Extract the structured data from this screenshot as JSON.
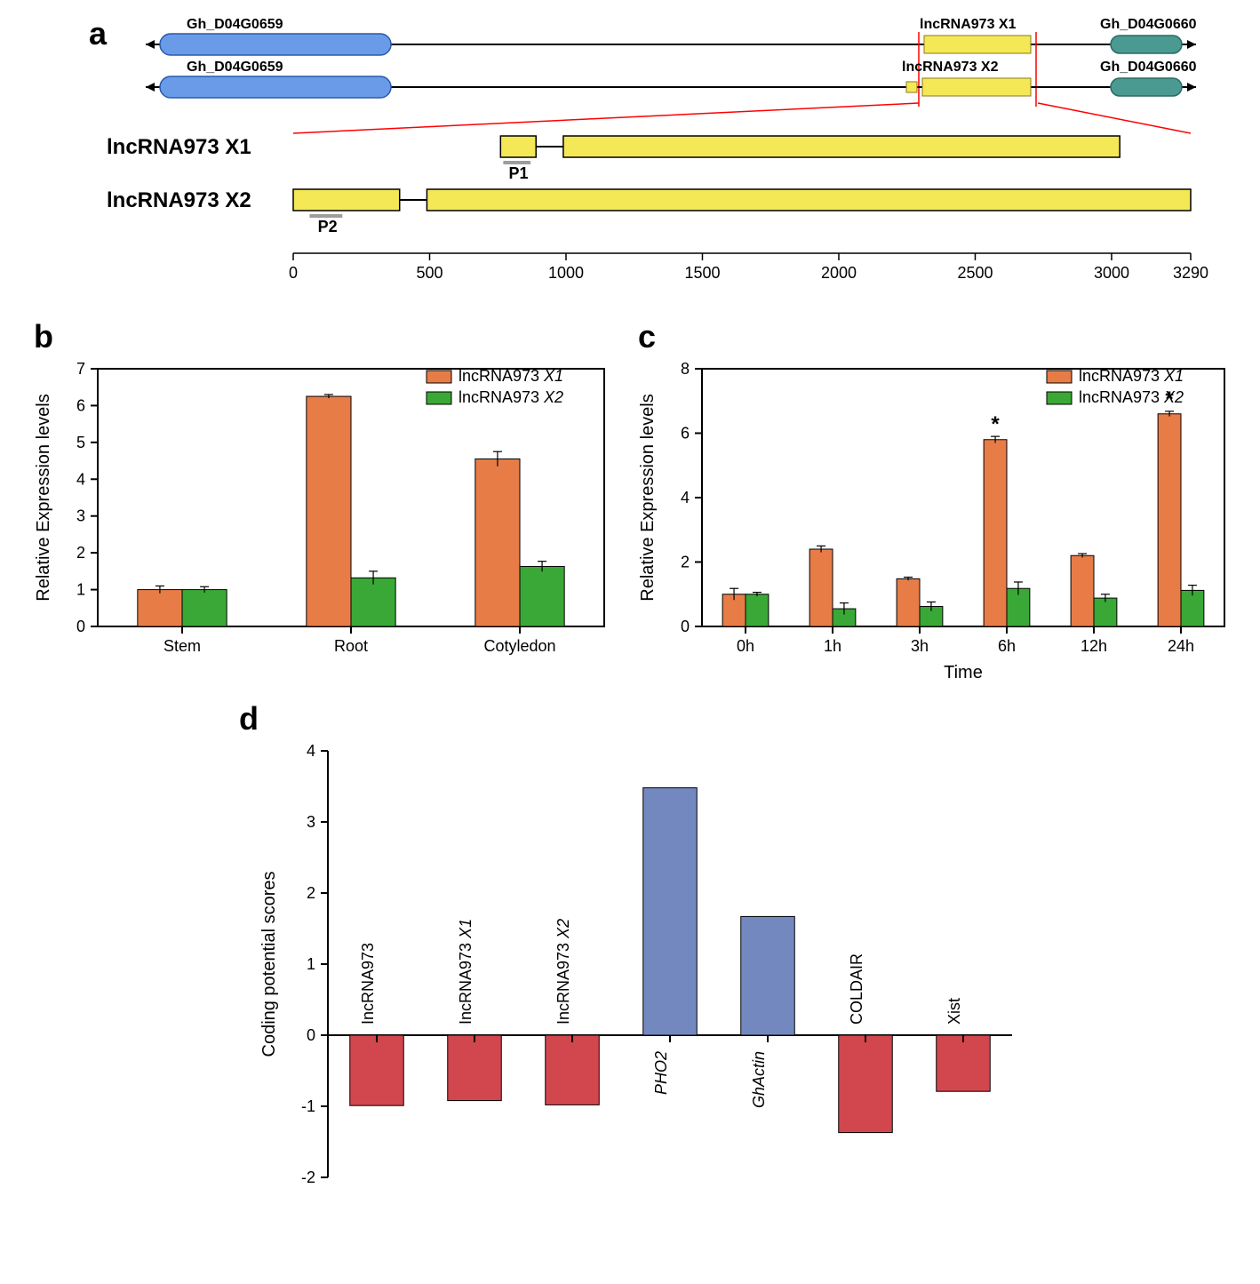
{
  "panel_labels": {
    "a": "a",
    "b": "b",
    "c": "c",
    "d": "d"
  },
  "panel_a": {
    "gene_left": "Gh_D04G0659",
    "gene_right": "Gh_D04G0660",
    "lnc_mini_1": "lncRNA973 X1",
    "lnc_mini_2": "lncRNA973 X2",
    "transcript1_label": "lncRNA973 X1",
    "transcript2_label": "lncRNA973 X2",
    "p1": "P1",
    "p2": "P2",
    "scale_ticks": [
      0,
      500,
      1000,
      1500,
      2000,
      2500,
      3000,
      3290
    ],
    "scale_max": 3290,
    "colors": {
      "gene_left_fill": "#6a9be8",
      "gene_left_stroke": "#2a5aa8",
      "gene_right_fill": "#4a9a92",
      "gene_right_stroke": "#2a6a62",
      "lnc_fill": "#f5e857",
      "lnc_stroke": "#8a7a1a",
      "p_fill": "#9d9d9d",
      "red_line": "#ff0000",
      "intron": "#000000"
    }
  },
  "panel_b": {
    "type": "bar",
    "ylabel": "Relative Expression levels",
    "ylim": [
      0,
      7
    ],
    "ytick_step": 1,
    "categories": [
      "Stem",
      "Root",
      "Cotyledon"
    ],
    "series": [
      {
        "name": "lncRNA973 X1",
        "color": "#e87c47",
        "values": [
          1.0,
          6.25,
          4.55
        ],
        "errors": [
          0.1,
          0.05,
          0.2
        ]
      },
      {
        "name": "lncRNA973 X2",
        "color": "#3aa836",
        "values": [
          1.0,
          1.32,
          1.63
        ],
        "errors": [
          0.08,
          0.18,
          0.14
        ]
      }
    ],
    "bar_width": 0.33
  },
  "panel_c": {
    "type": "bar",
    "ylabel": "Relative Expression levels",
    "xlabel": "Time",
    "ylim": [
      0,
      8
    ],
    "ytick_step": 2,
    "categories": [
      "0h",
      "1h",
      "3h",
      "6h",
      "12h",
      "24h"
    ],
    "series": [
      {
        "name": "lncRNA973 X1",
        "color": "#e87c47",
        "values": [
          1.0,
          2.4,
          1.48,
          5.8,
          2.2,
          6.6
        ],
        "errors": [
          0.18,
          0.1,
          0.05,
          0.1,
          0.06,
          0.08
        ],
        "sig": [
          "",
          "",
          "",
          "*",
          "",
          "*"
        ]
      },
      {
        "name": "lncRNA973 X2",
        "color": "#3aa836",
        "values": [
          1.0,
          0.55,
          0.62,
          1.18,
          0.88,
          1.12
        ],
        "errors": [
          0.06,
          0.18,
          0.14,
          0.2,
          0.12,
          0.16
        ],
        "sig": [
          "",
          "",
          "",
          "",
          "",
          ""
        ]
      }
    ],
    "bar_width": 0.33
  },
  "panel_d": {
    "type": "bar",
    "ylabel": "Coding potential scores",
    "ylim": [
      -2,
      4
    ],
    "ytick_step": 1,
    "categories": [
      "IncRNA973",
      "IncRNA973 X1",
      "IncRNA973 X2",
      "PHO2",
      "GhActin",
      "COLDAIR",
      "Xist"
    ],
    "values": [
      -0.99,
      -0.92,
      -0.98,
      3.48,
      1.67,
      -1.37,
      -0.79
    ],
    "colors_neg": "#d1474d",
    "colors_pos": "#7488c0",
    "bar_stroke": "#000000",
    "bar_width": 0.55,
    "italic_idx": [
      3,
      4
    ]
  },
  "fonts": {
    "panel_label_size": 36,
    "axis_label_size": 20,
    "tick_size": 18,
    "legend_size": 18,
    "gene_label_size": 16,
    "transcript_label_size": 24
  }
}
